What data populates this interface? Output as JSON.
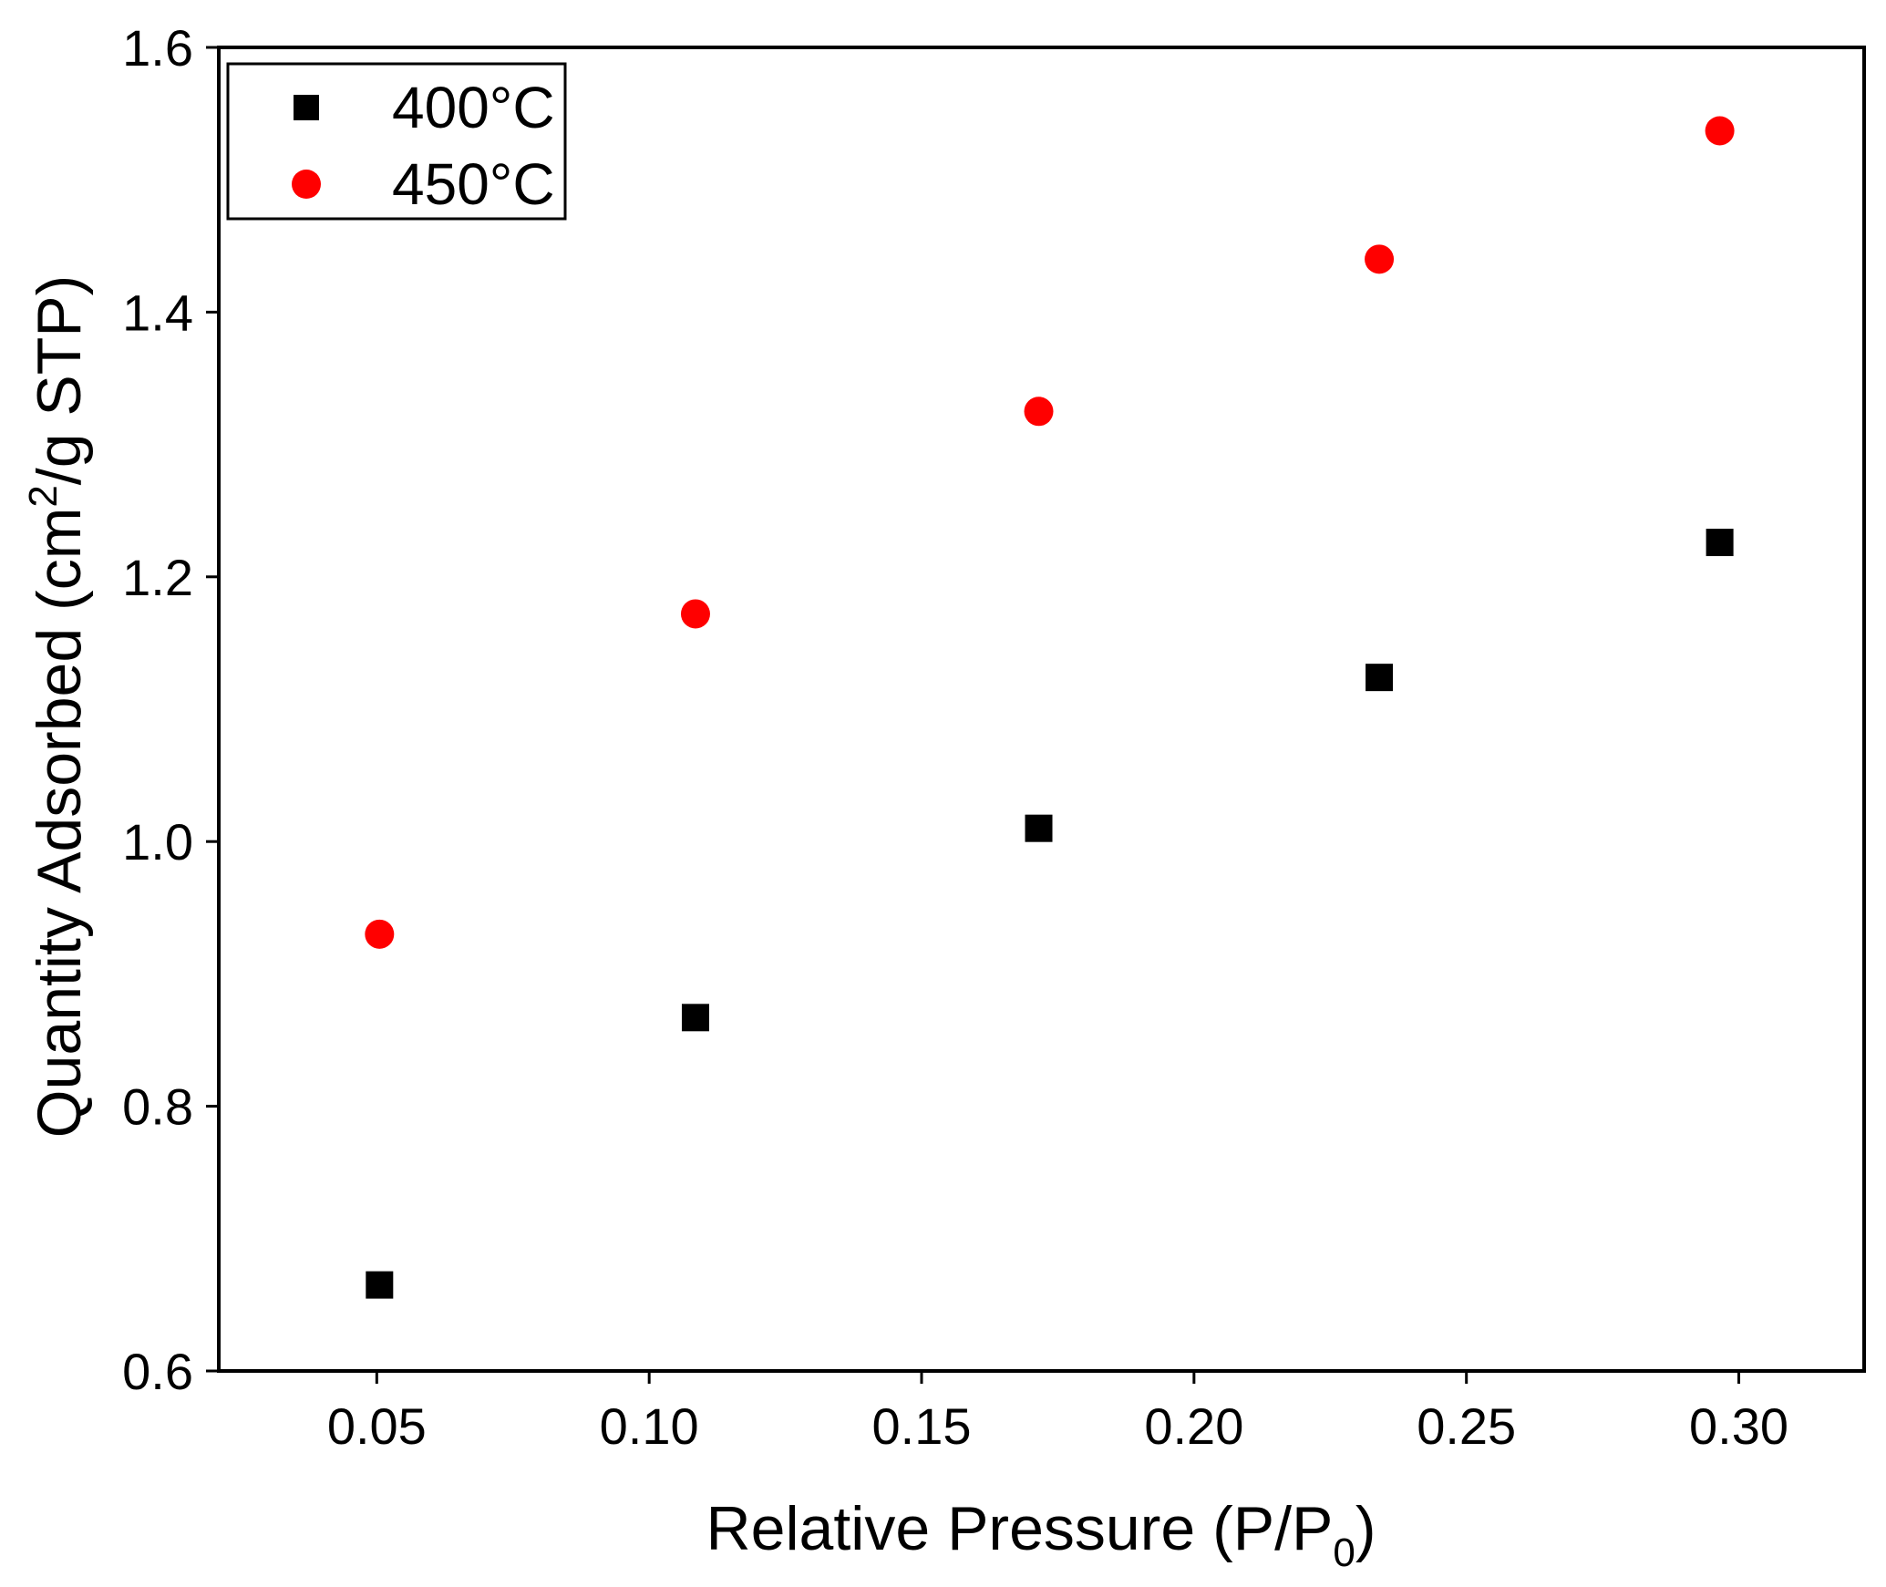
{
  "chart_data": {
    "type": "scatter",
    "title": "",
    "xlabel": {
      "prefix": "Relative Pressure (P/P",
      "subscript": "0",
      "suffix": ")"
    },
    "ylabel": {
      "prefix": "Quantity Adsorbed (cm",
      "superscript": "2",
      "suffix": "/g STP)"
    },
    "xlim": [
      0.021,
      0.323
    ],
    "ylim": [
      0.6,
      1.6
    ],
    "xticks": [
      "0.05",
      "0.10",
      "0.15",
      "0.20",
      "0.25",
      "0.30"
    ],
    "yticks": [
      "0.6",
      "0.8",
      "1.0",
      "1.2",
      "1.4",
      "1.6"
    ],
    "grid": false,
    "legend_position": "top-left",
    "series": [
      {
        "name": "400°C",
        "marker": "square",
        "color": "#000000",
        "x": [
          0.0505,
          0.1085,
          0.1715,
          0.234,
          0.2965
        ],
        "y": [
          0.665,
          0.867,
          1.01,
          1.124,
          1.226
        ]
      },
      {
        "name": "450°C",
        "marker": "circle",
        "color": "#ff0000",
        "x": [
          0.0505,
          0.1085,
          0.1715,
          0.234,
          0.2965
        ],
        "y": [
          0.93,
          1.172,
          1.325,
          1.44,
          1.537
        ]
      }
    ]
  }
}
